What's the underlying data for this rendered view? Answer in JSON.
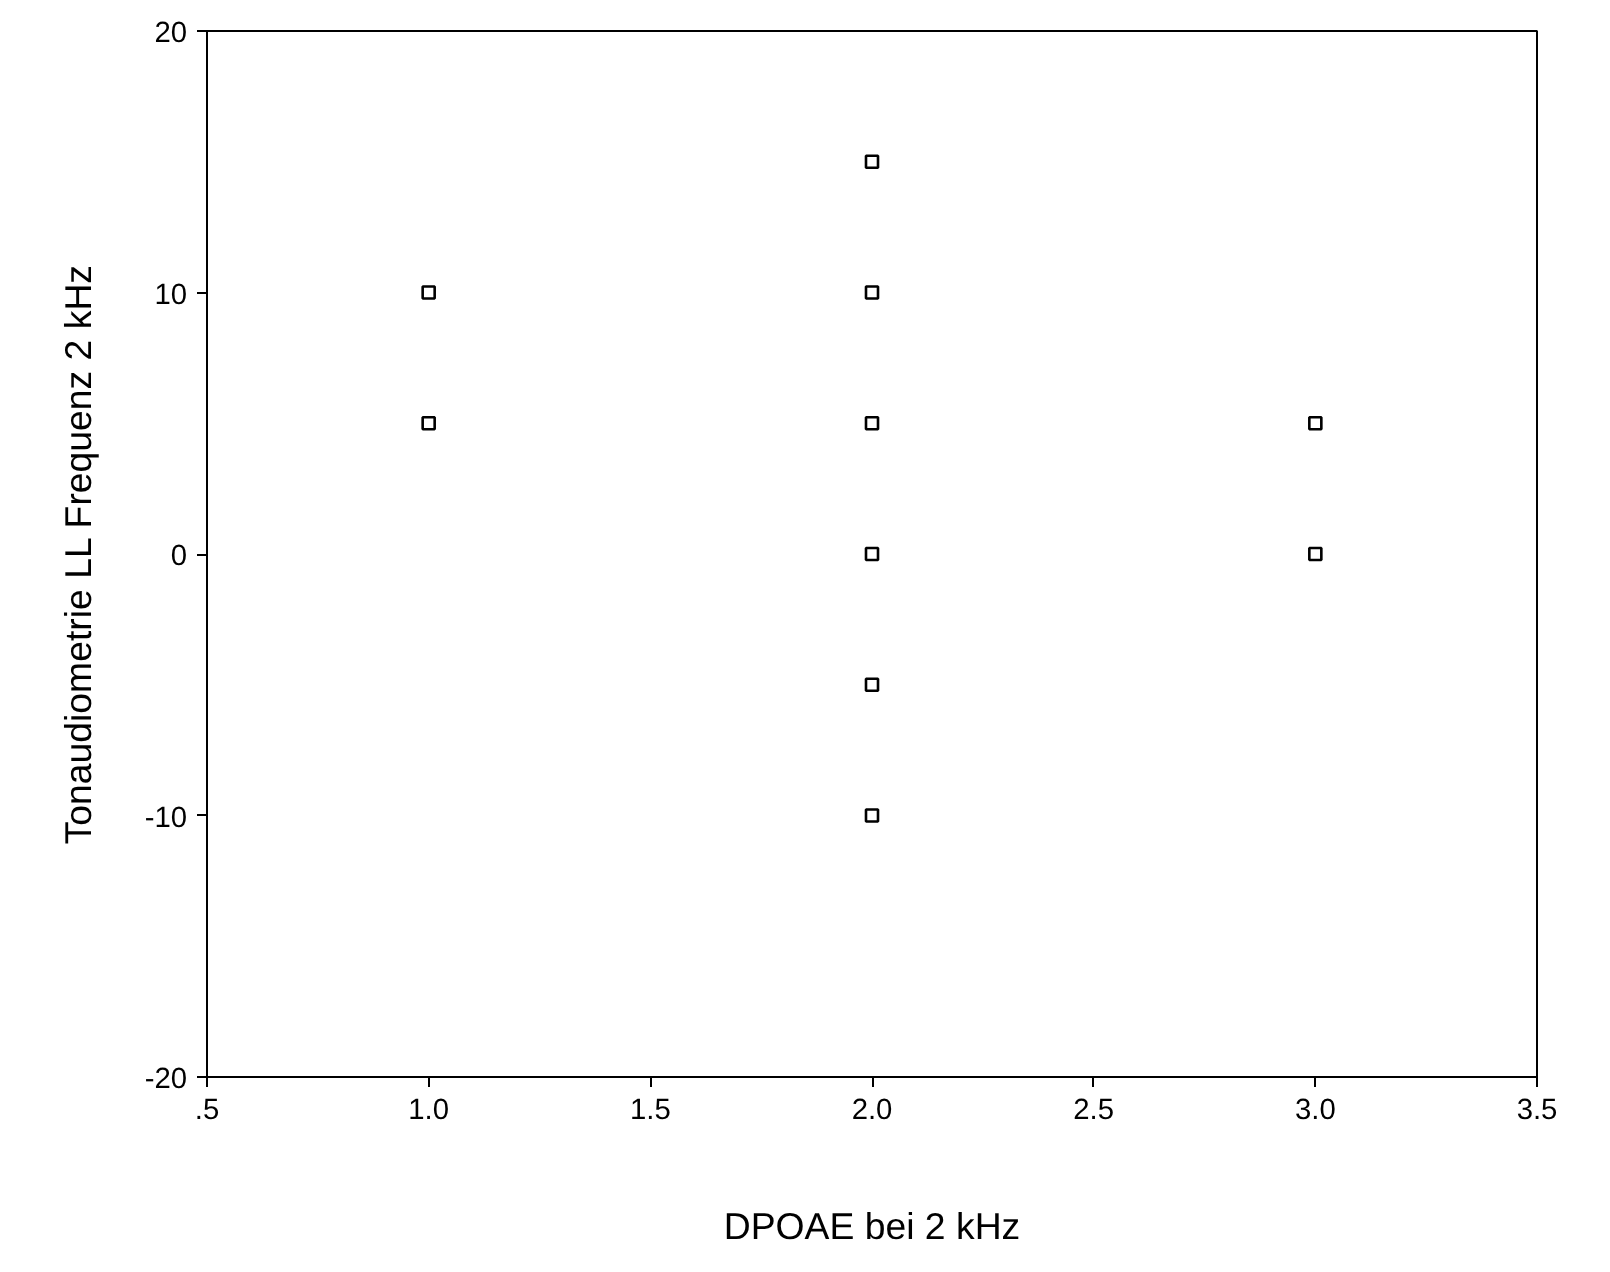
{
  "chart_data": {
    "type": "scatter",
    "xlabel": "DPOAE bei 2 kHz",
    "ylabel": "Tonaudiometrie LL Frequenz 2 kHz",
    "x": [
      1,
      1,
      2,
      2,
      2,
      2,
      2,
      2,
      3,
      3
    ],
    "values": [
      10,
      5,
      15,
      10,
      5,
      0,
      -5,
      -10,
      5,
      0
    ],
    "color": "#000000",
    "marker": "square",
    "grid": false,
    "xlim": [
      0.5,
      3.5
    ],
    "ylim": [
      -20,
      20
    ],
    "xticks": [
      {
        "value": 0.5,
        "label": ".5"
      },
      {
        "value": 1,
        "label": "1.0"
      },
      {
        "value": 1.5,
        "label": "1.5"
      },
      {
        "value": 2,
        "label": "2.0"
      },
      {
        "value": 2.5,
        "label": "2.5"
      },
      {
        "value": 3,
        "label": "3.0"
      },
      {
        "value": 3.5,
        "label": "3.5"
      }
    ],
    "yticks": [
      -20,
      -10,
      0,
      10,
      20
    ]
  }
}
